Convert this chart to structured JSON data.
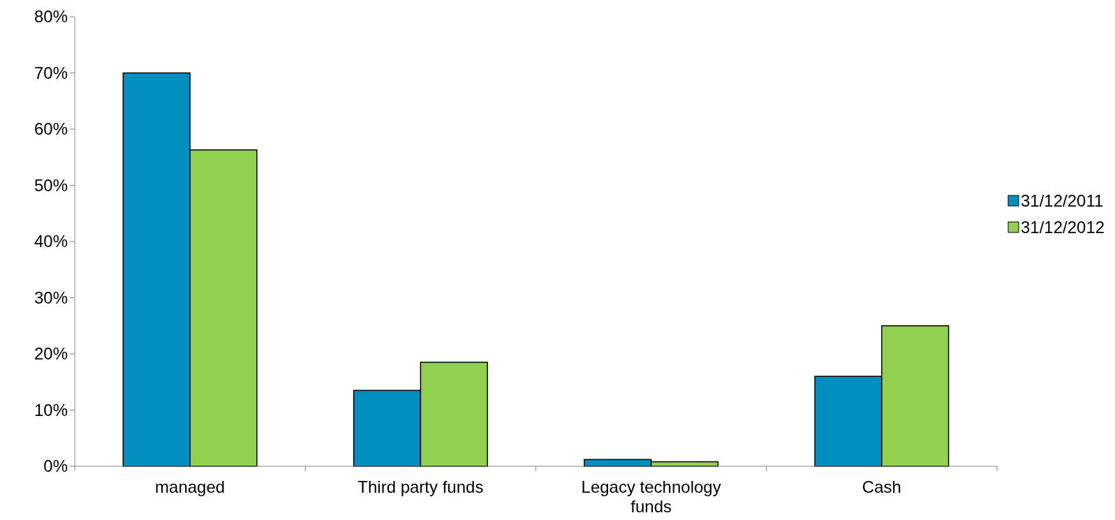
{
  "chart_data": {
    "type": "bar",
    "categories": [
      "managed",
      "Third party funds",
      "Legacy technology funds",
      "Cash"
    ],
    "series": [
      {
        "name": "31/12/2011",
        "color": "#008fbf",
        "values": [
          70,
          13.5,
          1.2,
          16
        ]
      },
      {
        "name": "31/12/2012",
        "color": "#92d050",
        "values": [
          56.3,
          18.5,
          0.8,
          25
        ]
      }
    ],
    "ylim": [
      0,
      80
    ],
    "yticks": [
      {
        "value": 0,
        "label": "0%"
      },
      {
        "value": 10,
        "label": "10%"
      },
      {
        "value": 20,
        "label": "20%"
      },
      {
        "value": 30,
        "label": "30%"
      },
      {
        "value": 40,
        "label": "40%"
      },
      {
        "value": 50,
        "label": "50%"
      },
      {
        "value": 60,
        "label": "60%"
      },
      {
        "value": 70,
        "label": "70%"
      },
      {
        "value": 80,
        "label": "80%"
      }
    ],
    "grid": false,
    "legend": "right"
  }
}
